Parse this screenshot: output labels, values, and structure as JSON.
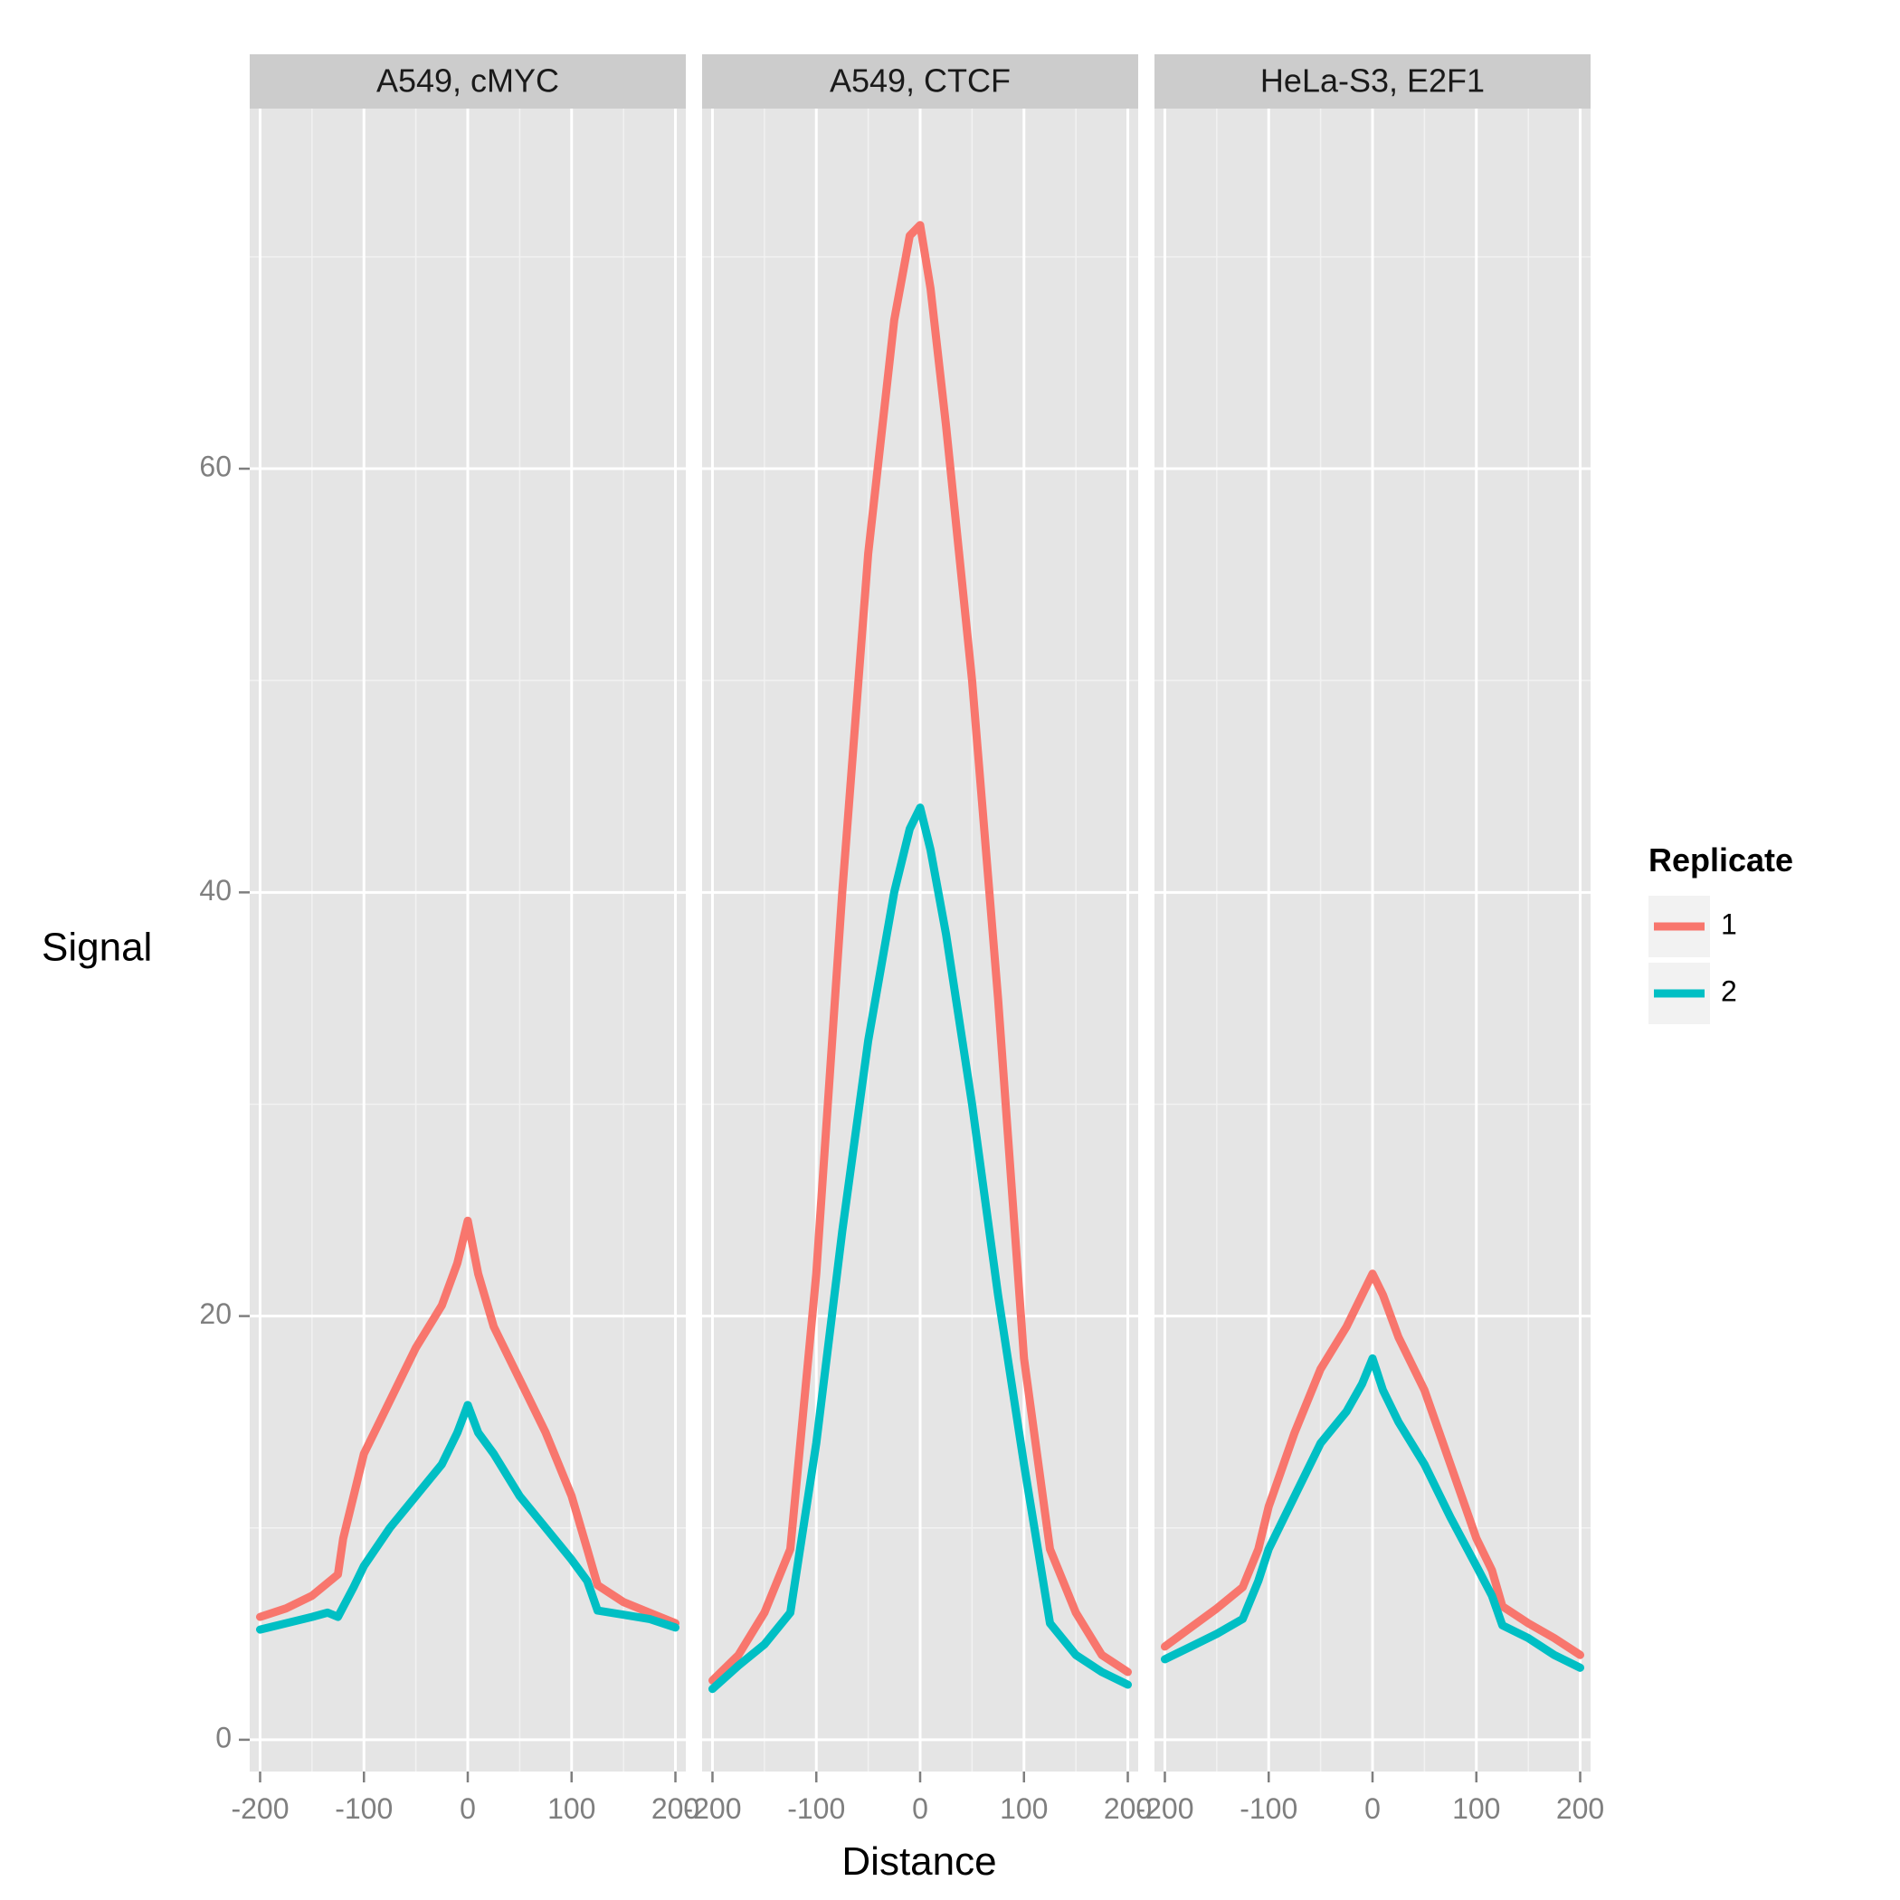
{
  "chart_data": {
    "type": "line",
    "xlabel": "Distance",
    "ylabel": "Signal",
    "xlim": [
      -210,
      210
    ],
    "ylim": [
      -1.5,
      77
    ],
    "x_ticks": [
      -200,
      -100,
      0,
      100,
      200
    ],
    "x_tick_labels": [
      "-200",
      "-100",
      "0",
      "100",
      "200"
    ],
    "y_ticks": [
      0,
      20,
      40,
      60
    ],
    "y_tick_labels": [
      "0",
      "20",
      "40",
      "60"
    ],
    "grid": true,
    "legend": {
      "title": "Replicate",
      "placement": "right",
      "entries": [
        {
          "label": "1",
          "color": "#F8766D"
        },
        {
          "label": "2",
          "color": "#00BFC4"
        }
      ]
    },
    "facets": [
      {
        "title": "A549, cMYC",
        "series": [
          {
            "name": "1",
            "color": "#F8766D",
            "x": [
              -200,
              -175,
              -150,
              -125,
              -120,
              -110,
              -100,
              -75,
              -50,
              -25,
              -10,
              0,
              10,
              25,
              50,
              75,
              100,
              115,
              125,
              150,
              175,
              200
            ],
            "y": [
              5.8,
              6.2,
              6.8,
              7.8,
              9.5,
              11.5,
              13.5,
              16.0,
              18.5,
              20.5,
              22.5,
              24.5,
              22.0,
              19.5,
              17.0,
              14.5,
              11.5,
              9.0,
              7.3,
              6.5,
              6.0,
              5.5
            ]
          },
          {
            "name": "2",
            "color": "#00BFC4",
            "x": [
              -200,
              -175,
              -150,
              -135,
              -125,
              -110,
              -100,
              -75,
              -50,
              -25,
              -10,
              0,
              10,
              25,
              50,
              75,
              100,
              115,
              125,
              150,
              175,
              200
            ],
            "y": [
              5.2,
              5.5,
              5.8,
              6.0,
              5.8,
              7.2,
              8.2,
              10.0,
              11.5,
              13.0,
              14.5,
              15.8,
              14.5,
              13.5,
              11.5,
              10.0,
              8.5,
              7.5,
              6.1,
              5.9,
              5.7,
              5.3
            ]
          }
        ]
      },
      {
        "title": "A549, CTCF",
        "series": [
          {
            "name": "1",
            "color": "#F8766D",
            "x": [
              -200,
              -175,
              -150,
              -125,
              -100,
              -75,
              -50,
              -25,
              -10,
              0,
              10,
              25,
              50,
              75,
              100,
              125,
              150,
              175,
              200
            ],
            "y": [
              2.8,
              4.0,
              6.0,
              9.0,
              22.0,
              40.0,
              56.0,
              67.0,
              71.0,
              71.5,
              68.5,
              62.0,
              50.0,
              35.0,
              18.0,
              9.0,
              6.0,
              4.0,
              3.2
            ]
          },
          {
            "name": "2",
            "color": "#00BFC4",
            "x": [
              -200,
              -175,
              -150,
              -125,
              -100,
              -75,
              -50,
              -25,
              -10,
              0,
              10,
              25,
              50,
              75,
              100,
              125,
              150,
              175,
              200
            ],
            "y": [
              2.4,
              3.5,
              4.5,
              6.0,
              14.0,
              24.0,
              33.0,
              40.0,
              43.0,
              44.0,
              42.0,
              38.0,
              30.0,
              21.0,
              13.0,
              5.5,
              4.0,
              3.2,
              2.6
            ]
          }
        ]
      },
      {
        "title": "HeLa-S3, E2F1",
        "series": [
          {
            "name": "1",
            "color": "#F8766D",
            "x": [
              -200,
              -175,
              -150,
              -125,
              -110,
              -100,
              -75,
              -50,
              -25,
              -10,
              0,
              10,
              25,
              50,
              75,
              100,
              115,
              125,
              150,
              175,
              200
            ],
            "y": [
              4.4,
              5.3,
              6.2,
              7.2,
              9.0,
              11.0,
              14.5,
              17.5,
              19.5,
              21.0,
              22.0,
              21.0,
              19.0,
              16.5,
              13.0,
              9.5,
              8.0,
              6.3,
              5.5,
              4.8,
              4.0
            ]
          },
          {
            "name": "2",
            "color": "#00BFC4",
            "x": [
              -200,
              -175,
              -150,
              -125,
              -110,
              -100,
              -75,
              -50,
              -25,
              -10,
              0,
              10,
              25,
              50,
              75,
              100,
              115,
              125,
              150,
              175,
              200
            ],
            "y": [
              3.8,
              4.4,
              5.0,
              5.7,
              7.5,
              9.0,
              11.5,
              14.0,
              15.5,
              16.8,
              18.0,
              16.5,
              15.0,
              13.0,
              10.5,
              8.2,
              6.8,
              5.4,
              4.8,
              4.0,
              3.4
            ]
          }
        ]
      }
    ]
  }
}
